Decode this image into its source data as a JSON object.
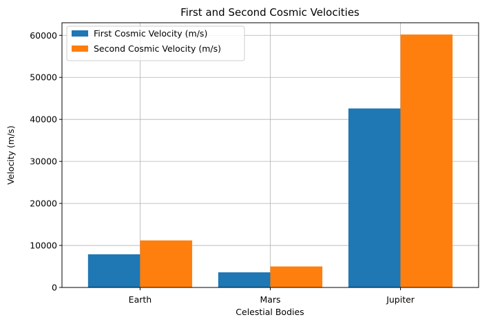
{
  "chart_data": {
    "type": "bar",
    "title": "First and Second Cosmic Velocities",
    "xlabel": "Celestial Bodies",
    "ylabel": "Velocity (m/s)",
    "categories": [
      "Earth",
      "Mars",
      "Jupiter"
    ],
    "series": [
      {
        "name": "First Cosmic Velocity (m/s)",
        "values": [
          7900,
          3600,
          42600
        ],
        "color": "#1f77b4"
      },
      {
        "name": "Second Cosmic Velocity (m/s)",
        "values": [
          11200,
          5000,
          60200
        ],
        "color": "#ff7f0e"
      }
    ],
    "ylim": [
      0,
      63000
    ],
    "yticks": [
      0,
      10000,
      20000,
      30000,
      40000,
      50000,
      60000
    ],
    "grid": true,
    "legend_position": "top-left"
  }
}
